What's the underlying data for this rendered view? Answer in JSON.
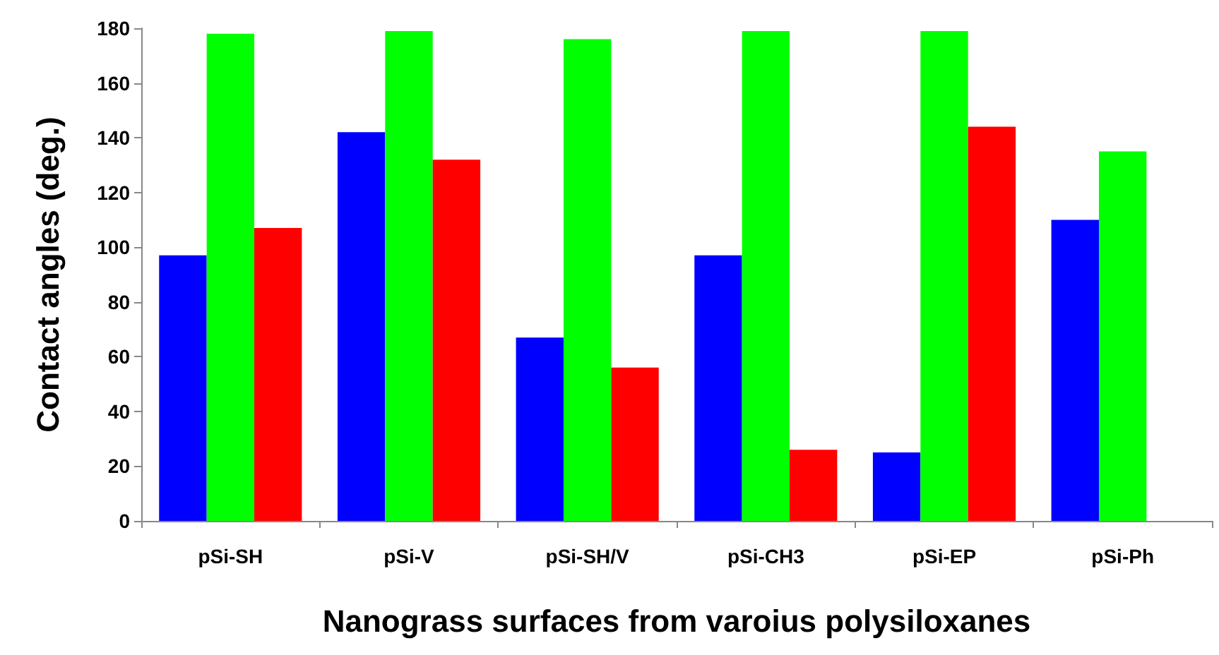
{
  "chart_data": {
    "type": "bar",
    "xlabel": "Nanograss surfaces from varoius polysiloxanes",
    "ylabel": "Contact angles (deg.)",
    "categories": [
      "pSi-SH",
      "pSi-V",
      "pSi-SH/V",
      "pSi-CH3",
      "pSi-EP",
      "pSi-Ph"
    ],
    "series": [
      {
        "color": "#0000ff",
        "values": [
          97,
          142,
          67,
          97,
          25,
          110
        ]
      },
      {
        "color": "#00ff00",
        "values": [
          178,
          179,
          176,
          179,
          179,
          135
        ]
      },
      {
        "color": "#ff0000",
        "values": [
          107,
          132,
          56,
          26,
          144,
          null
        ]
      }
    ],
    "ylim": [
      0,
      180
    ],
    "yticks": [
      0,
      20,
      40,
      60,
      80,
      100,
      120,
      140,
      160,
      180
    ]
  }
}
